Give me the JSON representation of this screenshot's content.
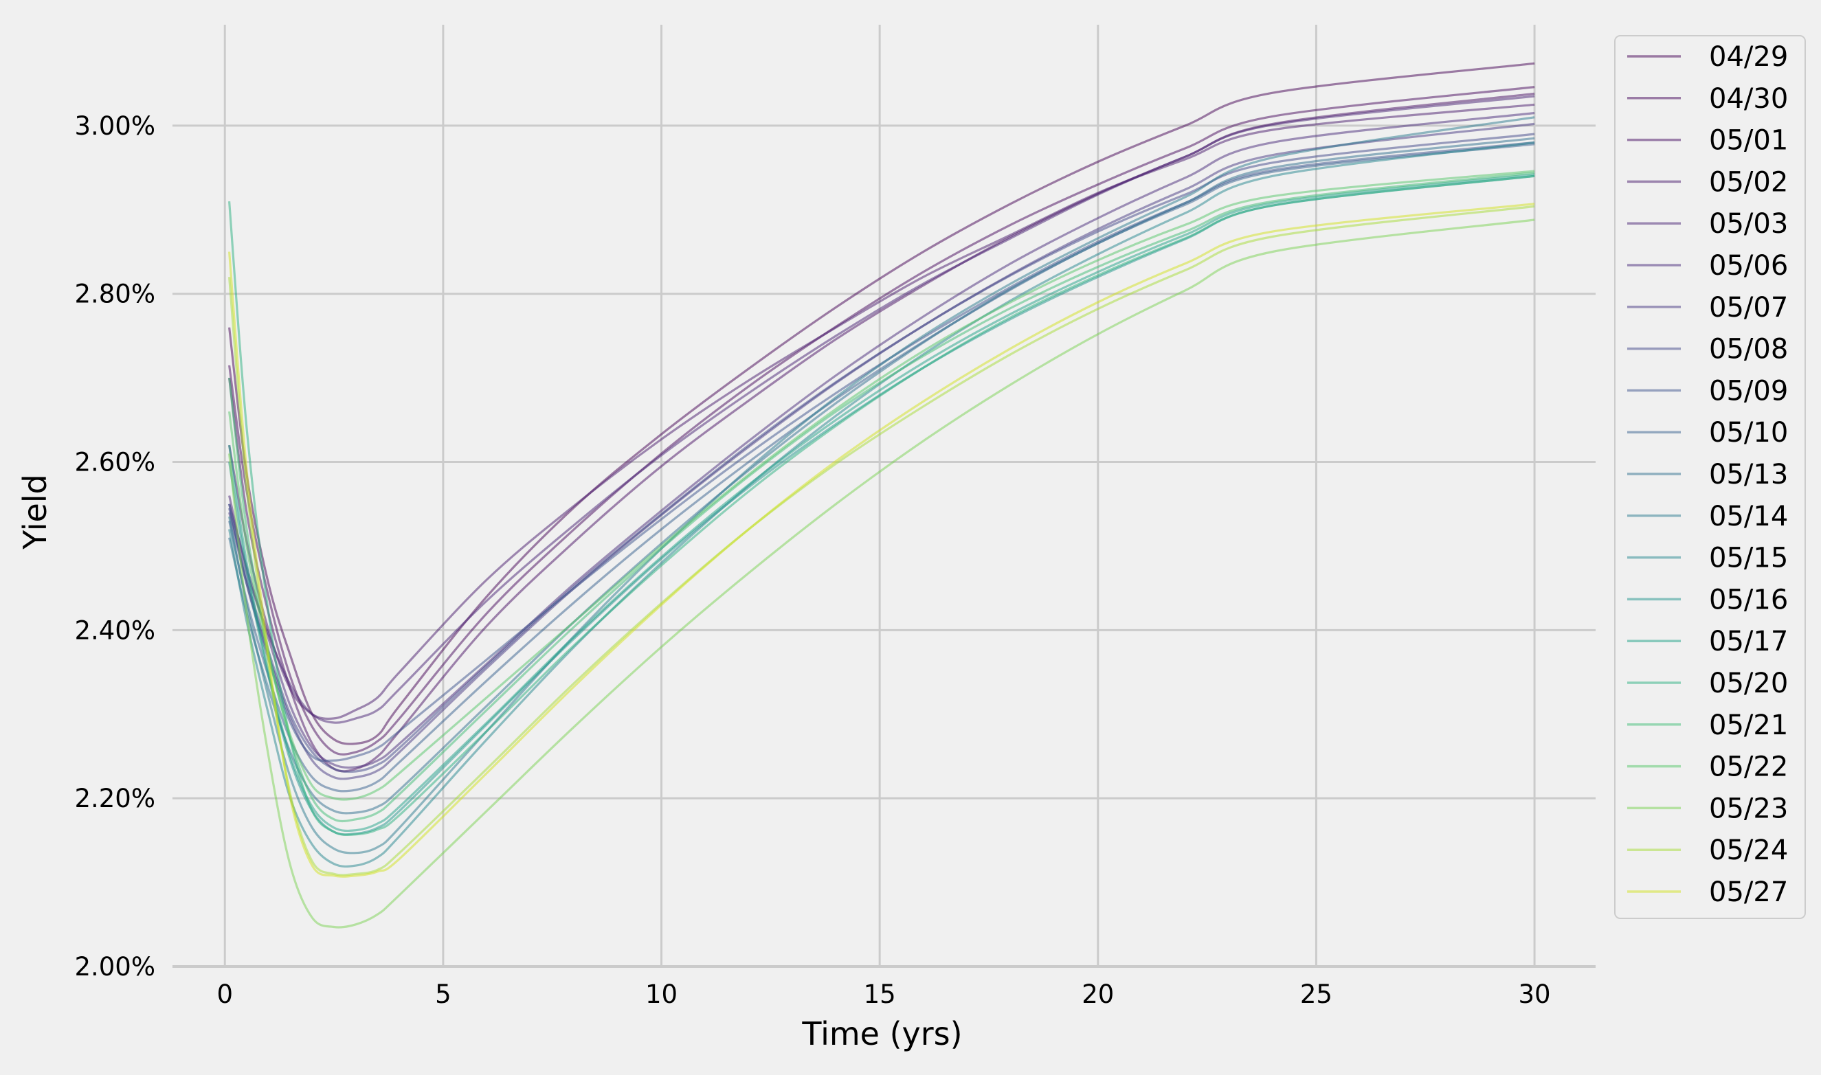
{
  "chart_data": {
    "type": "line",
    "title": "",
    "xlabel": "Time (yrs)",
    "ylabel": "Yield",
    "xlim": [
      -1.2,
      31.4
    ],
    "ylim": [
      2.0,
      3.12
    ],
    "x_ticks": [
      0,
      5,
      10,
      15,
      20,
      25,
      30
    ],
    "x_tick_labels": [
      "0",
      "5",
      "10",
      "15",
      "20",
      "25",
      "30"
    ],
    "y_ticks": [
      2.0,
      2.2,
      2.4,
      2.6,
      2.8,
      3.0
    ],
    "y_tick_labels": [
      "2.00%",
      "2.20%",
      "2.40%",
      "2.60%",
      "2.80%",
      "3.00%"
    ],
    "grid": true,
    "legend_position": "upper-right, outside plot",
    "colors": [
      "#440154",
      "#46085c",
      "#471063",
      "#481a6c",
      "#482173",
      "#472a7a",
      "#453781",
      "#404688",
      "#3b528b",
      "#355f8d",
      "#2e6e8e",
      "#297a8e",
      "#24868e",
      "#1f938c",
      "#1fa187",
      "#2ab07f",
      "#3dbc74",
      "#54c568",
      "#7ad151",
      "#a5db36",
      "#d2e21b",
      "#fde725"
    ],
    "series": [
      {
        "name": "04/29",
        "values": [
          2.76,
          2.585,
          2.455,
          2.37,
          2.3,
          2.27,
          2.265,
          2.275,
          2.31,
          2.44,
          2.546,
          2.633,
          2.711,
          2.784,
          2.85,
          2.907,
          2.957,
          3.0,
          3.039,
          3.074
        ]
      },
      {
        "name": "04/30",
        "values": [
          2.715,
          2.565,
          2.44,
          2.345,
          2.285,
          2.255,
          2.255,
          2.268,
          2.295,
          2.42,
          2.52,
          2.61,
          2.69,
          2.761,
          2.826,
          2.882,
          2.93,
          2.973,
          3.011,
          3.046
        ]
      },
      {
        "name": "05/01",
        "values": [
          2.7,
          2.54,
          2.42,
          2.33,
          2.265,
          2.235,
          2.235,
          2.25,
          2.28,
          2.405,
          2.505,
          2.595,
          2.673,
          2.746,
          2.81,
          2.868,
          2.919,
          2.963,
          3.002,
          3.038
        ]
      },
      {
        "name": "05/02",
        "values": [
          2.62,
          2.505,
          2.4,
          2.33,
          2.3,
          2.295,
          2.305,
          2.32,
          2.35,
          2.46,
          2.548,
          2.627,
          2.697,
          2.76,
          2.82,
          2.87,
          2.92,
          2.96,
          2.995,
          3.025
        ]
      },
      {
        "name": "05/03",
        "values": [
          2.56,
          2.47,
          2.395,
          2.335,
          2.3,
          2.29,
          2.295,
          2.305,
          2.33,
          2.435,
          2.525,
          2.608,
          2.682,
          2.75,
          2.812,
          2.866,
          2.918,
          2.963,
          3.001,
          3.035
        ]
      },
      {
        "name": "05/06",
        "values": [
          2.55,
          2.475,
          2.39,
          2.31,
          2.26,
          2.24,
          2.237,
          2.245,
          2.265,
          2.36,
          2.455,
          2.542,
          2.625,
          2.703,
          2.773,
          2.836,
          2.89,
          2.938,
          2.98,
          3.015
        ]
      },
      {
        "name": "05/07",
        "values": [
          2.54,
          2.455,
          2.37,
          2.295,
          2.245,
          2.225,
          2.225,
          2.233,
          2.255,
          2.355,
          2.45,
          2.537,
          2.618,
          2.694,
          2.762,
          2.823,
          2.877,
          2.924,
          2.965,
          3.002
        ]
      },
      {
        "name": "05/08",
        "values": [
          2.545,
          2.46,
          2.375,
          2.3,
          2.255,
          2.235,
          2.232,
          2.24,
          2.26,
          2.358,
          2.452,
          2.538,
          2.62,
          2.695,
          2.762,
          2.822,
          2.874,
          2.918,
          2.956,
          2.99
        ]
      },
      {
        "name": "05/09",
        "values": [
          2.55,
          2.455,
          2.365,
          2.29,
          2.25,
          2.245,
          2.25,
          2.26,
          2.28,
          2.365,
          2.45,
          2.532,
          2.61,
          2.682,
          2.748,
          2.808,
          2.862,
          2.908,
          2.947,
          2.98
        ]
      },
      {
        "name": "05/10",
        "values": [
          2.53,
          2.435,
          2.345,
          2.27,
          2.225,
          2.21,
          2.21,
          2.22,
          2.243,
          2.34,
          2.433,
          2.52,
          2.6,
          2.675,
          2.743,
          2.805,
          2.86,
          2.906,
          2.945,
          2.978
        ]
      },
      {
        "name": "05/13",
        "values": [
          2.51,
          2.42,
          2.33,
          2.255,
          2.205,
          2.185,
          2.183,
          2.19,
          2.21,
          2.31,
          2.41,
          2.503,
          2.59,
          2.67,
          2.742,
          2.806,
          2.86,
          2.908,
          2.95,
          2.985
        ]
      },
      {
        "name": "05/14",
        "values": [
          2.535,
          2.43,
          2.32,
          2.225,
          2.165,
          2.14,
          2.135,
          2.142,
          2.165,
          2.28,
          2.393,
          2.497,
          2.592,
          2.677,
          2.75,
          2.812,
          2.866,
          2.915,
          2.962,
          3.01
        ]
      },
      {
        "name": "05/15",
        "values": [
          2.52,
          2.41,
          2.3,
          2.2,
          2.145,
          2.122,
          2.12,
          2.13,
          2.155,
          2.27,
          2.38,
          2.48,
          2.572,
          2.655,
          2.728,
          2.792,
          2.847,
          2.896,
          2.94,
          2.98
        ]
      },
      {
        "name": "05/16",
        "values": [
          2.6,
          2.47,
          2.345,
          2.245,
          2.185,
          2.16,
          2.158,
          2.165,
          2.185,
          2.288,
          2.39,
          2.485,
          2.57,
          2.645,
          2.712,
          2.77,
          2.82,
          2.865,
          2.905,
          2.94
        ]
      },
      {
        "name": "05/17",
        "values": [
          2.62,
          2.48,
          2.35,
          2.25,
          2.19,
          2.165,
          2.162,
          2.17,
          2.19,
          2.29,
          2.392,
          2.487,
          2.573,
          2.65,
          2.718,
          2.776,
          2.826,
          2.87,
          2.908,
          2.942
        ]
      },
      {
        "name": "05/20",
        "values": [
          2.91,
          2.64,
          2.42,
          2.27,
          2.185,
          2.16,
          2.157,
          2.163,
          2.18,
          2.28,
          2.382,
          2.477,
          2.565,
          2.643,
          2.712,
          2.772,
          2.822,
          2.866,
          2.905,
          2.94
        ]
      },
      {
        "name": "05/21",
        "values": [
          2.7,
          2.52,
          2.375,
          2.27,
          2.2,
          2.175,
          2.175,
          2.183,
          2.205,
          2.305,
          2.404,
          2.497,
          2.583,
          2.66,
          2.726,
          2.783,
          2.832,
          2.874,
          2.91,
          2.944
        ]
      },
      {
        "name": "05/22",
        "values": [
          2.66,
          2.5,
          2.37,
          2.275,
          2.215,
          2.2,
          2.2,
          2.21,
          2.23,
          2.32,
          2.41,
          2.5,
          2.585,
          2.663,
          2.732,
          2.79,
          2.84,
          2.882,
          2.916,
          2.946
        ]
      },
      {
        "name": "05/23",
        "values": [
          2.61,
          2.42,
          2.25,
          2.12,
          2.058,
          2.047,
          2.05,
          2.062,
          2.085,
          2.185,
          2.285,
          2.38,
          2.468,
          2.55,
          2.625,
          2.692,
          2.752,
          2.804,
          2.85,
          2.888
        ]
      },
      {
        "name": "05/24",
        "values": [
          2.82,
          2.57,
          2.36,
          2.205,
          2.125,
          2.11,
          2.11,
          2.115,
          2.135,
          2.235,
          2.337,
          2.432,
          2.52,
          2.598,
          2.666,
          2.728,
          2.782,
          2.828,
          2.868,
          2.904
        ]
      },
      {
        "name": "05/27",
        "values": [
          2.85,
          2.59,
          2.37,
          2.2,
          2.12,
          2.108,
          2.108,
          2.113,
          2.128,
          2.23,
          2.333,
          2.43,
          2.52,
          2.601,
          2.672,
          2.735,
          2.79,
          2.836,
          2.874,
          2.907
        ]
      }
    ],
    "x": [
      0.1,
      0.5,
      1.0,
      1.5,
      2.0,
      2.5,
      3.0,
      3.5,
      4.0,
      6.0,
      8.0,
      10.0,
      12.0,
      14.0,
      16.0,
      18.0,
      20.0,
      22.0,
      24.0,
      30.0
    ]
  }
}
